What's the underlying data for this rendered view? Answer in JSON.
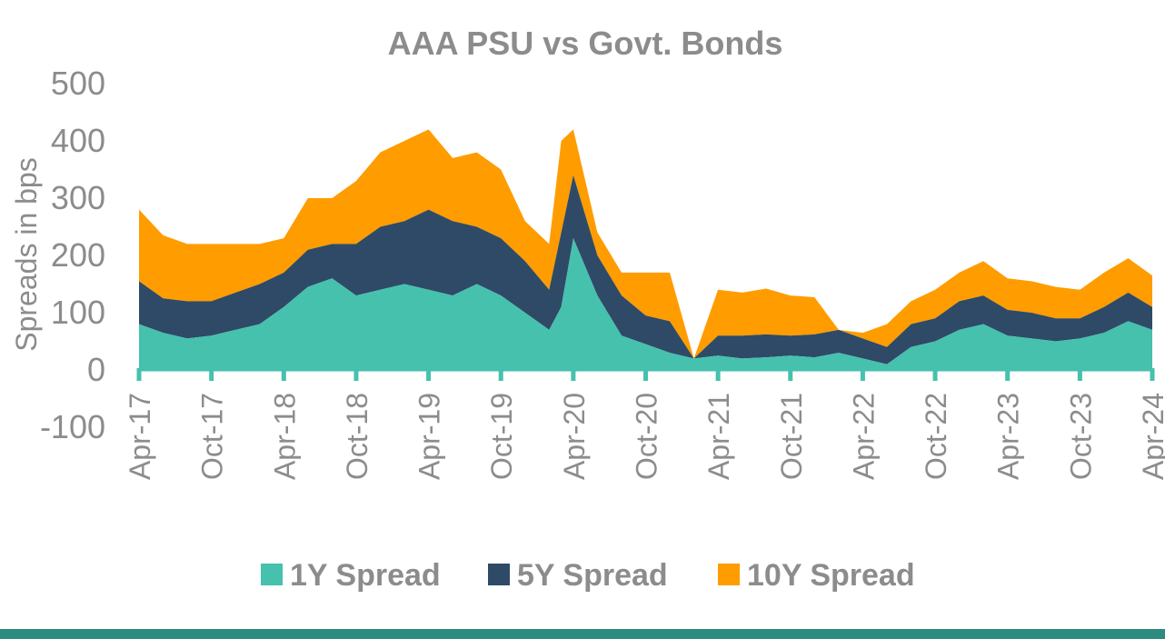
{
  "colors": {
    "series_1y": "#45c1ae",
    "series_5y": "#2f4a66",
    "series_10y": "#ff9c00",
    "axis": "#45c1ae",
    "text": "#8c8c8c",
    "bottom_bar": "#2e8b7f"
  },
  "chart_data": {
    "type": "area",
    "stacked": true,
    "title": "AAA PSU vs Govt. Bonds",
    "xlabel": "",
    "ylabel": "Spreads in bps",
    "ylim": [
      -100,
      500
    ],
    "yticks": [
      -100,
      0,
      100,
      200,
      300,
      400,
      500
    ],
    "xlim": [
      "2017-04",
      "2024-04"
    ],
    "xtick_labels": [
      "Apr-17",
      "Oct-17",
      "Apr-18",
      "Oct-18",
      "Apr-19",
      "Oct-19",
      "Apr-20",
      "Oct-20",
      "Apr-21",
      "Oct-21",
      "Apr-22",
      "Oct-22",
      "Apr-23",
      "Oct-23",
      "Apr-24"
    ],
    "grid": false,
    "legend_position": "bottom",
    "x": [
      "2017-04",
      "2017-06",
      "2017-08",
      "2017-10",
      "2017-12",
      "2018-02",
      "2018-04",
      "2018-06",
      "2018-08",
      "2018-10",
      "2018-12",
      "2019-02",
      "2019-04",
      "2019-06",
      "2019-08",
      "2019-10",
      "2019-12",
      "2020-02",
      "2020-03",
      "2020-04",
      "2020-06",
      "2020-08",
      "2020-10",
      "2020-12",
      "2021-02",
      "2021-04",
      "2021-06",
      "2021-08",
      "2021-10",
      "2021-12",
      "2022-02",
      "2022-04",
      "2022-06",
      "2022-08",
      "2022-10",
      "2022-12",
      "2023-02",
      "2023-04",
      "2023-06",
      "2023-08",
      "2023-10",
      "2023-12",
      "2024-02",
      "2024-04"
    ],
    "series": [
      {
        "name": "1Y Spread",
        "values": [
          80,
          65,
          55,
          60,
          70,
          80,
          110,
          145,
          160,
          130,
          140,
          150,
          140,
          130,
          150,
          130,
          100,
          70,
          110,
          230,
          130,
          60,
          45,
          30,
          20,
          25,
          20,
          22,
          25,
          22,
          30,
          20,
          10,
          40,
          50,
          70,
          80,
          60,
          55,
          50,
          55,
          65,
          85,
          70
        ]
      },
      {
        "name": "5Y Spread",
        "values": [
          75,
          60,
          65,
          60,
          65,
          70,
          60,
          65,
          60,
          90,
          110,
          110,
          140,
          130,
          100,
          100,
          90,
          70,
          130,
          110,
          70,
          70,
          50,
          55,
          0,
          35,
          40,
          40,
          35,
          40,
          40,
          35,
          30,
          40,
          40,
          50,
          50,
          45,
          45,
          40,
          35,
          45,
          50,
          40
        ]
      },
      {
        "name": "10Y Spread",
        "values": [
          125,
          110,
          100,
          100,
          85,
          70,
          60,
          90,
          80,
          110,
          130,
          140,
          140,
          110,
          130,
          120,
          70,
          80,
          160,
          80,
          40,
          40,
          75,
          85,
          0,
          80,
          75,
          80,
          70,
          65,
          0,
          10,
          40,
          40,
          50,
          50,
          60,
          55,
          55,
          55,
          50,
          60,
          60,
          55
        ]
      }
    ]
  }
}
